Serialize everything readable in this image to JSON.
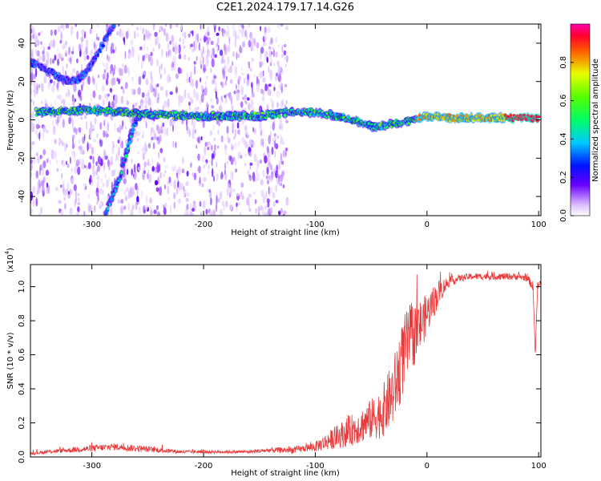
{
  "title": "C2E1.2024.179.17.14.G26",
  "colors": {
    "snr_line": "#e83a3a",
    "spectrogram_low": "#c8a4f0",
    "spectrogram_mid": "#5a00e0",
    "frame": "#000000"
  },
  "chart_data": [
    {
      "type": "heatmap",
      "xlabel": "Height of straight line (km)",
      "ylabel": "Frequency (Hz)",
      "xlim": [
        -355,
        102
      ],
      "ylim": [
        -50,
        50
      ],
      "x_ticks": [
        -300,
        -200,
        -100,
        0,
        100
      ],
      "y_ticks": [
        -40,
        -20,
        0,
        20,
        40
      ],
      "colorbar": {
        "label": "Normalized spectral amplitude",
        "range": [
          0.0,
          1.0
        ],
        "ticks": [
          0.0,
          0.2,
          0.4,
          0.6,
          0.8
        ]
      },
      "ridges": [
        {
          "points": [
            [
              -355,
              30
            ],
            [
              -340,
              26
            ],
            [
              -325,
              21
            ],
            [
              -315,
              20
            ],
            [
              -305,
              25
            ],
            [
              -295,
              34
            ],
            [
              -285,
              45
            ],
            [
              -280,
              50
            ]
          ],
          "amplitude": 0.35
        },
        {
          "points": [
            [
              -288,
              -50
            ],
            [
              -282,
              -40
            ],
            [
              -275,
              -30
            ],
            [
              -268,
              -15
            ],
            [
              -262,
              -2
            ],
            [
              -255,
              3
            ]
          ],
          "amplitude": 0.45
        },
        {
          "points": [
            [
              -350,
              4
            ],
            [
              -300,
              5
            ],
            [
              -250,
              3
            ],
            [
              -200,
              2
            ],
            [
              -150,
              2
            ],
            [
              -120,
              4
            ],
            [
              -100,
              4
            ],
            [
              -80,
              2
            ],
            [
              -60,
              -1
            ],
            [
              -45,
              -4
            ],
            [
              -30,
              -2
            ],
            [
              -15,
              0
            ],
            [
              0,
              2
            ],
            [
              20,
              1
            ],
            [
              50,
              1
            ],
            [
              80,
              1
            ],
            [
              100,
              1
            ]
          ],
          "amplitude": 0.6
        }
      ]
    },
    {
      "type": "line",
      "xlabel": "Height of straight line (km)",
      "ylabel": "SNR (10 * v/v)",
      "y_multiplier": "(x10",
      "y_multiplier_exp": "4",
      "y_multiplier_close": ")",
      "xlim": [
        -355,
        102
      ],
      "ylim": [
        0,
        1.13
      ],
      "x_ticks": [
        -300,
        -200,
        -100,
        0,
        100
      ],
      "y_ticks": [
        0.0,
        0.2,
        0.4,
        0.6,
        0.8,
        1.0
      ],
      "series": [
        {
          "x": [
            -355,
            -340,
            -320,
            -300,
            -280,
            -260,
            -240,
            -220,
            -200,
            -180,
            -160,
            -140,
            -120,
            -110,
            -100,
            -90,
            -80,
            -70,
            -60,
            -50,
            -40,
            -30,
            -25,
            -20,
            -15,
            -10,
            -5,
            0,
            5,
            10,
            15,
            20,
            30,
            40,
            50,
            60,
            70,
            80,
            90,
            95,
            97,
            99,
            102
          ],
          "y": [
            0.02,
            0.03,
            0.04,
            0.05,
            0.06,
            0.05,
            0.04,
            0.03,
            0.03,
            0.03,
            0.03,
            0.04,
            0.04,
            0.05,
            0.06,
            0.09,
            0.12,
            0.15,
            0.18,
            0.22,
            0.26,
            0.38,
            0.5,
            0.62,
            0.7,
            0.73,
            0.78,
            0.84,
            0.9,
            0.96,
            1.0,
            1.03,
            1.05,
            1.06,
            1.06,
            1.06,
            1.06,
            1.06,
            1.05,
            1.0,
            0.6,
            1.0,
            1.02
          ],
          "noise": [
            0.01,
            0.01,
            0.015,
            0.02,
            0.02,
            0.02,
            0.015,
            0.01,
            0.01,
            0.01,
            0.01,
            0.015,
            0.02,
            0.02,
            0.03,
            0.05,
            0.07,
            0.09,
            0.1,
            0.12,
            0.15,
            0.2,
            0.22,
            0.22,
            0.2,
            0.18,
            0.15,
            0.12,
            0.1,
            0.08,
            0.05,
            0.03,
            0.02,
            0.02,
            0.02,
            0.02,
            0.02,
            0.02,
            0.02,
            0.03,
            0.03,
            0.03,
            0.03
          ]
        }
      ]
    }
  ]
}
